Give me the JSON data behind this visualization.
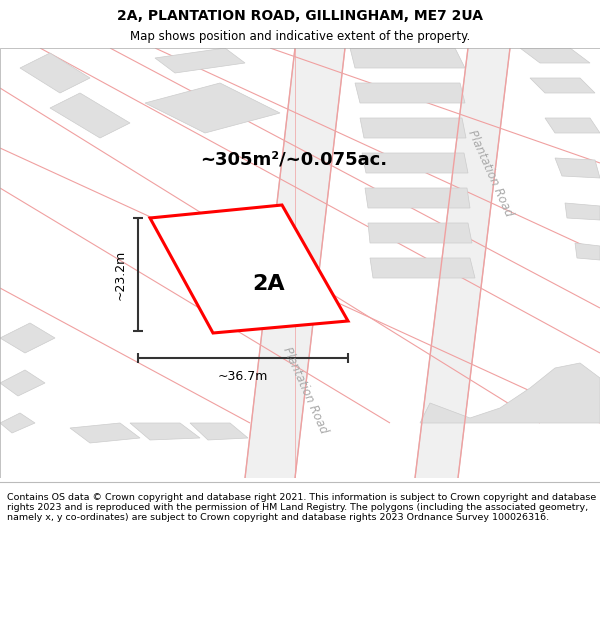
{
  "title": "2A, PLANTATION ROAD, GILLINGHAM, ME7 2UA",
  "subtitle": "Map shows position and indicative extent of the property.",
  "footer": "Contains OS data © Crown copyright and database right 2021. This information is subject to Crown copyright and database rights 2023 and is reproduced with the permission of HM Land Registry. The polygons (including the associated geometry, namely x, y co-ordinates) are subject to Crown copyright and database rights 2023 Ordnance Survey 100026316.",
  "map_bg": "#ffffff",
  "road_line_color": "#f0a0a0",
  "road_fill_color": "#e8e8e8",
  "building_fill": "#e0e0e0",
  "building_edge": "#cccccc",
  "plot_color": "#ff0000",
  "area_text": "~305m²/~0.075ac.",
  "width_text": "~36.7m",
  "height_text": "~23.2m",
  "label_2A": "2A",
  "plantation_road_label": "Plantation Road",
  "dim_color": "#333333",
  "road_label_color": "#aaaaaa",
  "title_fontsize": 10,
  "subtitle_fontsize": 8.5,
  "footer_fontsize": 6.8
}
